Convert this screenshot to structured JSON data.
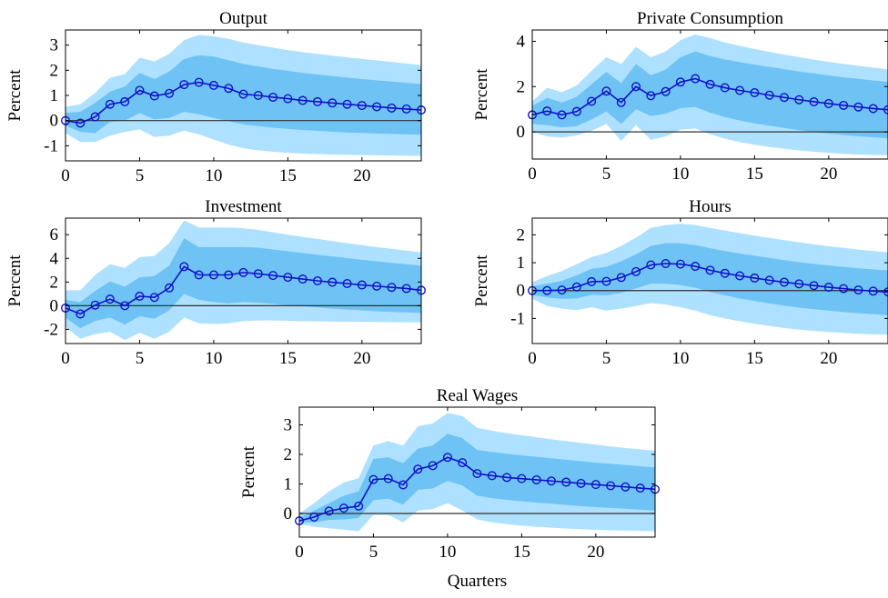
{
  "chart_data": [
    {
      "type": "line",
      "title": "Output",
      "xlabel": "",
      "ylabel": "Percent",
      "xlim": [
        0,
        24
      ],
      "ylim": [
        -1.6,
        3.6
      ],
      "xticks": [
        0,
        5,
        10,
        15,
        20
      ],
      "yticks": [
        -1,
        0,
        1,
        2,
        3
      ],
      "ytick_labels": [
        "-1",
        "0",
        "1",
        "2",
        "3"
      ],
      "x": [
        0,
        1,
        2,
        3,
        4,
        5,
        6,
        7,
        8,
        9,
        10,
        11,
        12,
        13,
        14,
        15,
        16,
        17,
        18,
        19,
        20,
        21,
        22,
        23,
        24
      ],
      "median": [
        0,
        -0.1,
        0.15,
        0.65,
        0.75,
        1.2,
        0.98,
        1.08,
        1.43,
        1.52,
        1.4,
        1.28,
        1.05,
        1.0,
        0.93,
        0.87,
        0.8,
        0.75,
        0.7,
        0.65,
        0.6,
        0.55,
        0.5,
        0.46,
        0.42
      ],
      "band_inner": {
        "lower": [
          -0.2,
          -0.45,
          -0.5,
          -0.05,
          0.0,
          0.3,
          0.05,
          0.1,
          0.35,
          0.25,
          0.1,
          -0.02,
          -0.15,
          -0.22,
          -0.28,
          -0.33,
          -0.37,
          -0.41,
          -0.44,
          -0.47,
          -0.49,
          -0.51,
          -0.53,
          -0.55,
          -0.56
        ],
        "upper": [
          0.3,
          0.35,
          0.7,
          1.15,
          1.35,
          1.9,
          1.65,
          1.95,
          2.45,
          2.6,
          2.55,
          2.4,
          2.25,
          2.15,
          2.05,
          1.98,
          1.9,
          1.83,
          1.77,
          1.71,
          1.65,
          1.6,
          1.55,
          1.5,
          1.45
        ]
      },
      "band_outer": {
        "lower": [
          -0.5,
          -0.85,
          -0.85,
          -0.6,
          -0.45,
          -0.35,
          -0.65,
          -0.6,
          -0.4,
          -0.55,
          -0.75,
          -0.95,
          -1.1,
          -1.18,
          -1.24,
          -1.28,
          -1.31,
          -1.33,
          -1.35,
          -1.36,
          -1.37,
          -1.38,
          -1.39,
          -1.4,
          -1.4
        ],
        "upper": [
          0.55,
          0.65,
          1.1,
          1.7,
          1.85,
          2.5,
          2.35,
          2.65,
          3.2,
          3.4,
          3.35,
          3.25,
          3.1,
          3.0,
          2.9,
          2.8,
          2.72,
          2.65,
          2.58,
          2.51,
          2.45,
          2.39,
          2.33,
          2.27,
          2.2
        ]
      },
      "zero_line": 0
    },
    {
      "type": "line",
      "title": "Private Consumption",
      "xlabel": "",
      "ylabel": "Percent",
      "xlim": [
        0,
        24
      ],
      "ylim": [
        -1.2,
        4.5
      ],
      "xticks": [
        0,
        5,
        10,
        15,
        20
      ],
      "yticks": [
        0,
        2,
        4
      ],
      "ytick_labels": [
        "0",
        "2",
        "4"
      ],
      "x": [
        0,
        1,
        2,
        3,
        4,
        5,
        6,
        7,
        8,
        9,
        10,
        11,
        12,
        13,
        14,
        15,
        16,
        17,
        18,
        19,
        20,
        21,
        22,
        23,
        24
      ],
      "median": [
        0.75,
        0.92,
        0.75,
        0.9,
        1.35,
        1.8,
        1.3,
        2.0,
        1.6,
        1.78,
        2.2,
        2.35,
        2.1,
        1.95,
        1.83,
        1.73,
        1.62,
        1.52,
        1.42,
        1.33,
        1.25,
        1.17,
        1.1,
        1.03,
        0.98
      ],
      "band_inner": {
        "lower": [
          0.35,
          0.3,
          0.2,
          0.25,
          0.55,
          0.9,
          0.35,
          1.0,
          0.7,
          0.8,
          1.05,
          1.1,
          0.85,
          0.65,
          0.5,
          0.38,
          0.27,
          0.17,
          0.08,
          0.0,
          -0.07,
          -0.13,
          -0.19,
          -0.24,
          -0.28
        ],
        "upper": [
          1.15,
          1.5,
          1.3,
          1.55,
          2.1,
          2.65,
          2.15,
          3.0,
          2.5,
          2.75,
          3.3,
          3.55,
          3.35,
          3.2,
          3.08,
          2.97,
          2.87,
          2.77,
          2.67,
          2.58,
          2.49,
          2.41,
          2.34,
          2.27,
          2.2
        ]
      },
      "band_outer": {
        "lower": [
          0.0,
          -0.2,
          -0.25,
          -0.15,
          0.05,
          0.35,
          -0.4,
          0.3,
          -0.35,
          -0.2,
          0.1,
          0.15,
          -0.1,
          -0.3,
          -0.45,
          -0.57,
          -0.67,
          -0.75,
          -0.82,
          -0.88,
          -0.93,
          -0.97,
          -1.0,
          -1.02,
          -1.03
        ],
        "upper": [
          1.35,
          1.95,
          1.75,
          2.05,
          2.7,
          3.3,
          3.0,
          3.75,
          3.3,
          3.55,
          4.05,
          4.3,
          4.15,
          3.95,
          3.8,
          3.66,
          3.53,
          3.41,
          3.3,
          3.19,
          3.09,
          3.0,
          2.92,
          2.84,
          2.76
        ]
      },
      "zero_line": 0
    },
    {
      "type": "line",
      "title": "Investment",
      "xlabel": "",
      "ylabel": "Percent",
      "xlim": [
        0,
        24
      ],
      "ylim": [
        -3.2,
        7.4
      ],
      "xticks": [
        0,
        5,
        10,
        15,
        20
      ],
      "yticks": [
        -2,
        0,
        2,
        4,
        6
      ],
      "ytick_labels": [
        "-2",
        "0",
        "2",
        "4",
        "6"
      ],
      "x": [
        0,
        1,
        2,
        3,
        4,
        5,
        6,
        7,
        8,
        9,
        10,
        11,
        12,
        13,
        14,
        15,
        16,
        17,
        18,
        19,
        20,
        21,
        22,
        23,
        24
      ],
      "median": [
        -0.2,
        -0.7,
        0.05,
        0.55,
        0.0,
        0.8,
        0.7,
        1.5,
        3.3,
        2.6,
        2.6,
        2.6,
        2.8,
        2.7,
        2.55,
        2.4,
        2.25,
        2.1,
        1.98,
        1.87,
        1.75,
        1.65,
        1.55,
        1.45,
        1.3
      ],
      "band_inner": {
        "lower": [
          -1.0,
          -1.9,
          -1.3,
          -1.0,
          -1.6,
          -0.9,
          -1.1,
          -0.4,
          1.0,
          0.5,
          0.3,
          0.2,
          0.3,
          0.25,
          0.15,
          0.05,
          -0.05,
          -0.15,
          -0.25,
          -0.33,
          -0.4,
          -0.47,
          -0.53,
          -0.58,
          -0.62
        ],
        "upper": [
          0.5,
          0.3,
          1.25,
          2.05,
          1.6,
          2.4,
          2.5,
          3.4,
          5.7,
          4.95,
          4.95,
          4.95,
          4.95,
          4.9,
          4.75,
          4.6,
          4.45,
          4.3,
          4.16,
          4.02,
          3.88,
          3.75,
          3.62,
          3.5,
          3.38
        ]
      },
      "band_outer": {
        "lower": [
          -1.8,
          -2.8,
          -2.4,
          -2.2,
          -2.9,
          -2.3,
          -2.8,
          -2.2,
          -1.0,
          -1.5,
          -1.55,
          -1.5,
          -1.3,
          -1.25,
          -1.25,
          -1.28,
          -1.31,
          -1.33,
          -1.35,
          -1.36,
          -1.37,
          -1.38,
          -1.39,
          -1.4,
          -1.4
        ],
        "upper": [
          1.3,
          1.3,
          2.6,
          3.5,
          3.2,
          4.1,
          4.2,
          5.3,
          7.2,
          6.6,
          6.6,
          6.6,
          6.55,
          6.4,
          6.2,
          6.0,
          5.82,
          5.64,
          5.46,
          5.28,
          5.11,
          4.95,
          4.8,
          4.65,
          4.5
        ]
      },
      "zero_line": 0
    },
    {
      "type": "line",
      "title": "Hours",
      "xlabel": "",
      "ylabel": "Percent",
      "xlim": [
        0,
        24
      ],
      "ylim": [
        -1.9,
        2.6
      ],
      "xticks": [
        0,
        5,
        10,
        15,
        20
      ],
      "yticks": [
        -1,
        0,
        1,
        2
      ],
      "ytick_labels": [
        "-1",
        "0",
        "1",
        "2"
      ],
      "x": [
        0,
        1,
        2,
        3,
        4,
        5,
        6,
        7,
        8,
        9,
        10,
        11,
        12,
        13,
        14,
        15,
        16,
        17,
        18,
        19,
        20,
        21,
        22,
        23,
        24
      ],
      "median": [
        0,
        0,
        0.02,
        0.13,
        0.32,
        0.33,
        0.47,
        0.68,
        0.92,
        0.97,
        0.95,
        0.87,
        0.73,
        0.62,
        0.53,
        0.45,
        0.37,
        0.3,
        0.24,
        0.18,
        0.12,
        0.07,
        0.02,
        -0.02,
        -0.05
      ],
      "band_inner": {
        "lower": [
          -0.15,
          -0.25,
          -0.3,
          -0.28,
          -0.15,
          -0.17,
          -0.08,
          0.08,
          0.25,
          0.25,
          0.2,
          0.1,
          -0.05,
          -0.17,
          -0.28,
          -0.37,
          -0.46,
          -0.54,
          -0.61,
          -0.67,
          -0.72,
          -0.77,
          -0.81,
          -0.85,
          -0.88
        ],
        "upper": [
          0.15,
          0.25,
          0.35,
          0.55,
          0.78,
          0.85,
          1.05,
          1.3,
          1.6,
          1.7,
          1.7,
          1.63,
          1.52,
          1.42,
          1.33,
          1.25,
          1.17,
          1.09,
          1.02,
          0.96,
          0.9,
          0.85,
          0.8,
          0.76,
          0.72
        ]
      },
      "band_outer": {
        "lower": [
          -0.3,
          -0.55,
          -0.65,
          -0.7,
          -0.6,
          -0.72,
          -0.65,
          -0.55,
          -0.45,
          -0.5,
          -0.6,
          -0.72,
          -0.88,
          -1.0,
          -1.1,
          -1.19,
          -1.27,
          -1.34,
          -1.4,
          -1.45,
          -1.49,
          -1.52,
          -1.55,
          -1.57,
          -1.58
        ],
        "upper": [
          0.3,
          0.52,
          0.7,
          0.95,
          1.2,
          1.35,
          1.6,
          1.9,
          2.25,
          2.35,
          2.4,
          2.35,
          2.25,
          2.15,
          2.06,
          1.97,
          1.89,
          1.81,
          1.73,
          1.66,
          1.59,
          1.53,
          1.47,
          1.42,
          1.37
        ]
      },
      "zero_line": 0
    },
    {
      "type": "line",
      "title": "Real Wages",
      "xlabel": "Quarters",
      "ylabel": "Percent",
      "xlim": [
        0,
        24
      ],
      "ylim": [
        -0.8,
        3.6
      ],
      "xticks": [
        0,
        5,
        10,
        15,
        20
      ],
      "yticks": [
        0,
        1,
        2,
        3
      ],
      "ytick_labels": [
        "0",
        "1",
        "2",
        "3"
      ],
      "x": [
        0,
        1,
        2,
        3,
        4,
        5,
        6,
        7,
        8,
        9,
        10,
        11,
        12,
        13,
        14,
        15,
        16,
        17,
        18,
        19,
        20,
        21,
        22,
        23,
        24
      ],
      "median": [
        -0.25,
        -0.12,
        0.08,
        0.18,
        0.25,
        1.15,
        1.18,
        0.97,
        1.5,
        1.62,
        1.9,
        1.72,
        1.35,
        1.28,
        1.22,
        1.18,
        1.14,
        1.1,
        1.06,
        1.02,
        0.98,
        0.94,
        0.9,
        0.86,
        0.82
      ],
      "band_inner": {
        "lower": [
          -0.3,
          -0.3,
          -0.22,
          -0.2,
          -0.15,
          0.45,
          0.5,
          0.3,
          0.8,
          0.85,
          1.1,
          0.95,
          0.6,
          0.52,
          0.46,
          0.41,
          0.37,
          0.33,
          0.29,
          0.25,
          0.22,
          0.19,
          0.16,
          0.13,
          0.1
        ],
        "upper": [
          -0.15,
          0.1,
          0.35,
          0.6,
          0.75,
          1.85,
          1.9,
          1.7,
          2.2,
          2.3,
          2.7,
          2.55,
          2.15,
          2.08,
          2.02,
          1.97,
          1.92,
          1.87,
          1.82,
          1.77,
          1.72,
          1.68,
          1.64,
          1.6,
          1.56
        ]
      },
      "band_outer": {
        "lower": [
          -0.35,
          -0.45,
          -0.5,
          -0.55,
          -0.6,
          -0.05,
          -0.05,
          -0.3,
          0.1,
          0.15,
          0.35,
          0.1,
          -0.2,
          -0.3,
          -0.36,
          -0.41,
          -0.45,
          -0.48,
          -0.51,
          -0.53,
          -0.55,
          -0.57,
          -0.58,
          -0.59,
          -0.6
        ],
        "upper": [
          0.0,
          0.35,
          0.75,
          1.05,
          1.2,
          2.3,
          2.45,
          2.3,
          2.95,
          3.05,
          3.4,
          3.3,
          2.9,
          2.8,
          2.72,
          2.65,
          2.58,
          2.51,
          2.45,
          2.39,
          2.33,
          2.27,
          2.22,
          2.17,
          2.12
        ]
      },
      "zero_line": 0
    }
  ],
  "colors": {
    "band_outer": "#aee0ff",
    "band_inner": "#6ec3f4",
    "median_line": "#1010c8",
    "zero_line": "#303030",
    "axis": "#000000"
  }
}
